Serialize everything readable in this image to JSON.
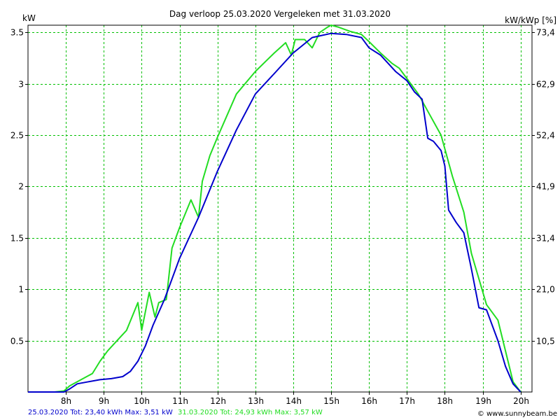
{
  "chart_data": {
    "type": "line",
    "title": "Dag  verloop 25.03.2020   Vergeleken met 31.03.2020",
    "ylabel_left": "kW",
    "ylabel_right": "kW/kWp [%]",
    "xlim": [
      7.0,
      20.3
    ],
    "ylim": [
      0,
      3.57
    ],
    "grid": true,
    "x_ticks": [
      8,
      9,
      10,
      11,
      12,
      13,
      14,
      15,
      16,
      17,
      18,
      19,
      20
    ],
    "x_tick_labels": [
      "8h",
      "9h",
      "10h",
      "11h",
      "12h",
      "13h",
      "14h",
      "15h",
      "16h",
      "17h",
      "18h",
      "19h",
      "20h"
    ],
    "y_ticks_left": [
      0.5,
      1,
      1.5,
      2,
      2.5,
      3,
      3.5
    ],
    "y_tick_labels_left": [
      "0.5",
      "1",
      "1.5",
      "2",
      "2.5",
      "3",
      "3.5"
    ],
    "y_ticks_right": [
      0.5,
      1,
      1.5,
      2,
      2.5,
      3,
      3.5
    ],
    "y_tick_labels_right": [
      "10,5",
      "21,0",
      "31,4",
      "41,9",
      "52,4",
      "62,9",
      "73,4"
    ],
    "series": [
      {
        "name": "25.03.2020",
        "color": "#0000cc",
        "x": [
          7.0,
          7.7,
          7.95,
          8.1,
          8.3,
          8.6,
          8.9,
          9.2,
          9.5,
          9.7,
          9.9,
          10.1,
          10.3,
          10.6,
          11.0,
          11.5,
          12.0,
          12.5,
          13.0,
          13.5,
          14.0,
          14.5,
          15.0,
          15.4,
          15.8,
          16.0,
          16.3,
          16.7,
          17.0,
          17.2,
          17.4,
          17.55,
          17.7,
          17.9,
          18.0,
          18.1,
          18.3,
          18.5,
          18.7,
          18.9,
          19.1,
          19.4,
          19.6,
          19.8,
          20.0
        ],
        "y": [
          0.0,
          0.0,
          0.0,
          0.03,
          0.08,
          0.1,
          0.12,
          0.13,
          0.15,
          0.2,
          0.3,
          0.45,
          0.65,
          0.9,
          1.3,
          1.7,
          2.15,
          2.55,
          2.9,
          3.1,
          3.3,
          3.45,
          3.49,
          3.48,
          3.45,
          3.35,
          3.28,
          3.12,
          3.03,
          2.92,
          2.85,
          2.47,
          2.44,
          2.35,
          2.2,
          1.77,
          1.65,
          1.55,
          1.2,
          0.82,
          0.8,
          0.5,
          0.25,
          0.08,
          0.0
        ]
      },
      {
        "name": "31.03.2020",
        "color": "#22dd22",
        "x": [
          7.0,
          7.7,
          7.95,
          8.1,
          8.4,
          8.7,
          8.9,
          9.1,
          9.4,
          9.6,
          9.8,
          9.9,
          10.0,
          10.2,
          10.35,
          10.45,
          10.65,
          10.8,
          11.0,
          11.3,
          11.5,
          11.6,
          11.8,
          12.0,
          12.5,
          13.0,
          13.5,
          13.8,
          13.95,
          14.05,
          14.3,
          14.5,
          14.7,
          14.9,
          15.0,
          15.2,
          15.5,
          15.8,
          16.0,
          16.3,
          16.6,
          16.8,
          17.0,
          17.3,
          17.6,
          17.9,
          18.2,
          18.5,
          18.7,
          18.9,
          19.1,
          19.4,
          19.6,
          19.8,
          20.0
        ],
        "y": [
          0.0,
          0.0,
          0.01,
          0.06,
          0.12,
          0.18,
          0.3,
          0.4,
          0.52,
          0.6,
          0.78,
          0.87,
          0.6,
          0.97,
          0.73,
          0.87,
          0.9,
          1.4,
          1.6,
          1.87,
          1.7,
          2.05,
          2.3,
          2.48,
          2.9,
          3.12,
          3.3,
          3.4,
          3.28,
          3.43,
          3.43,
          3.35,
          3.5,
          3.55,
          3.57,
          3.55,
          3.51,
          3.48,
          3.41,
          3.3,
          3.2,
          3.15,
          3.05,
          2.9,
          2.7,
          2.5,
          2.1,
          1.75,
          1.35,
          1.1,
          0.85,
          0.7,
          0.4,
          0.1,
          0.0
        ]
      }
    ],
    "footer": {
      "label1": "25.03.2020 Tot: 23,40 kWh Max: 3,51 kW",
      "label2": "31.03.2020 Tot: 24,93 kWh Max: 3,57 kW",
      "credit": "© www.sunnybeam.be"
    }
  }
}
